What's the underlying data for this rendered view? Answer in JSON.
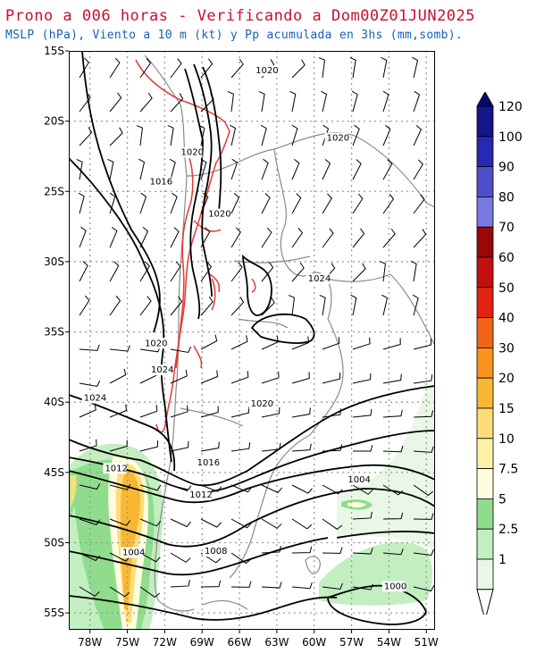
{
  "title": "Prono a 006 horas - Verificando a Dom00Z01JUN2025",
  "subtitle": "MSLP (hPa), Viento a 10 m (kt) y Pp acumulada en 3hs (mm,somb).",
  "map": {
    "lat_labels": [
      "15S",
      "20S",
      "25S",
      "30S",
      "35S",
      "40S",
      "45S",
      "50S",
      "55S"
    ],
    "lon_labels": [
      "78W",
      "75W",
      "72W",
      "69W",
      "66W",
      "63W",
      "60W",
      "57W",
      "54W",
      "51W"
    ],
    "isobar_labels": [
      {
        "text": "1020",
        "lon": -64.7,
        "lat": -16.6
      },
      {
        "text": "1020",
        "lon": -59.0,
        "lat": -21.4
      },
      {
        "text": "1020",
        "lon": -70.7,
        "lat": -22.4
      },
      {
        "text": "1016",
        "lon": -73.2,
        "lat": -24.5
      },
      {
        "text": "1020",
        "lon": -68.5,
        "lat": -26.8
      },
      {
        "text": "1024",
        "lon": -60.5,
        "lat": -31.4
      },
      {
        "text": "1020",
        "lon": -73.6,
        "lat": -36.0
      },
      {
        "text": "1024",
        "lon": -73.1,
        "lat": -37.9
      },
      {
        "text": "1024",
        "lon": -78.5,
        "lat": -39.9
      },
      {
        "text": "1020",
        "lon": -65.1,
        "lat": -40.3
      },
      {
        "text": "1016",
        "lon": -69.4,
        "lat": -44.5
      },
      {
        "text": "1012",
        "lon": -76.8,
        "lat": -44.9
      },
      {
        "text": "1004",
        "lon": -57.3,
        "lat": -45.7
      },
      {
        "text": "1012",
        "lon": -70.0,
        "lat": -46.8
      },
      {
        "text": "1004",
        "lon": -75.4,
        "lat": -50.9
      },
      {
        "text": "1008",
        "lon": -68.8,
        "lat": -50.8
      },
      {
        "text": "1000",
        "lon": -54.4,
        "lat": -53.3
      }
    ]
  },
  "colorbar": {
    "labels": [
      "1",
      "2.5",
      "5",
      "7.5",
      "10",
      "15",
      "20",
      "30",
      "40",
      "50",
      "60",
      "70",
      "80",
      "90",
      "100",
      "120"
    ],
    "colors": [
      "#e9f8e6",
      "#c2eec0",
      "#8fdc8d",
      "#fdfde0",
      "#fff2a8",
      "#fedc7a",
      "#f9b833",
      "#f7931e",
      "#f06418",
      "#e22313",
      "#c3100e",
      "#9a0707",
      "#7979e1",
      "#4f4fce",
      "#2828b4",
      "#15158e",
      "#08086a"
    ]
  },
  "colors": {
    "isobar": "#000000",
    "terrain_contour": "#e53935",
    "coastline": "#8a8a8a",
    "grid": "#9a9a9a",
    "title": "#c8102e",
    "subtitle": "#1a5fb4"
  }
}
